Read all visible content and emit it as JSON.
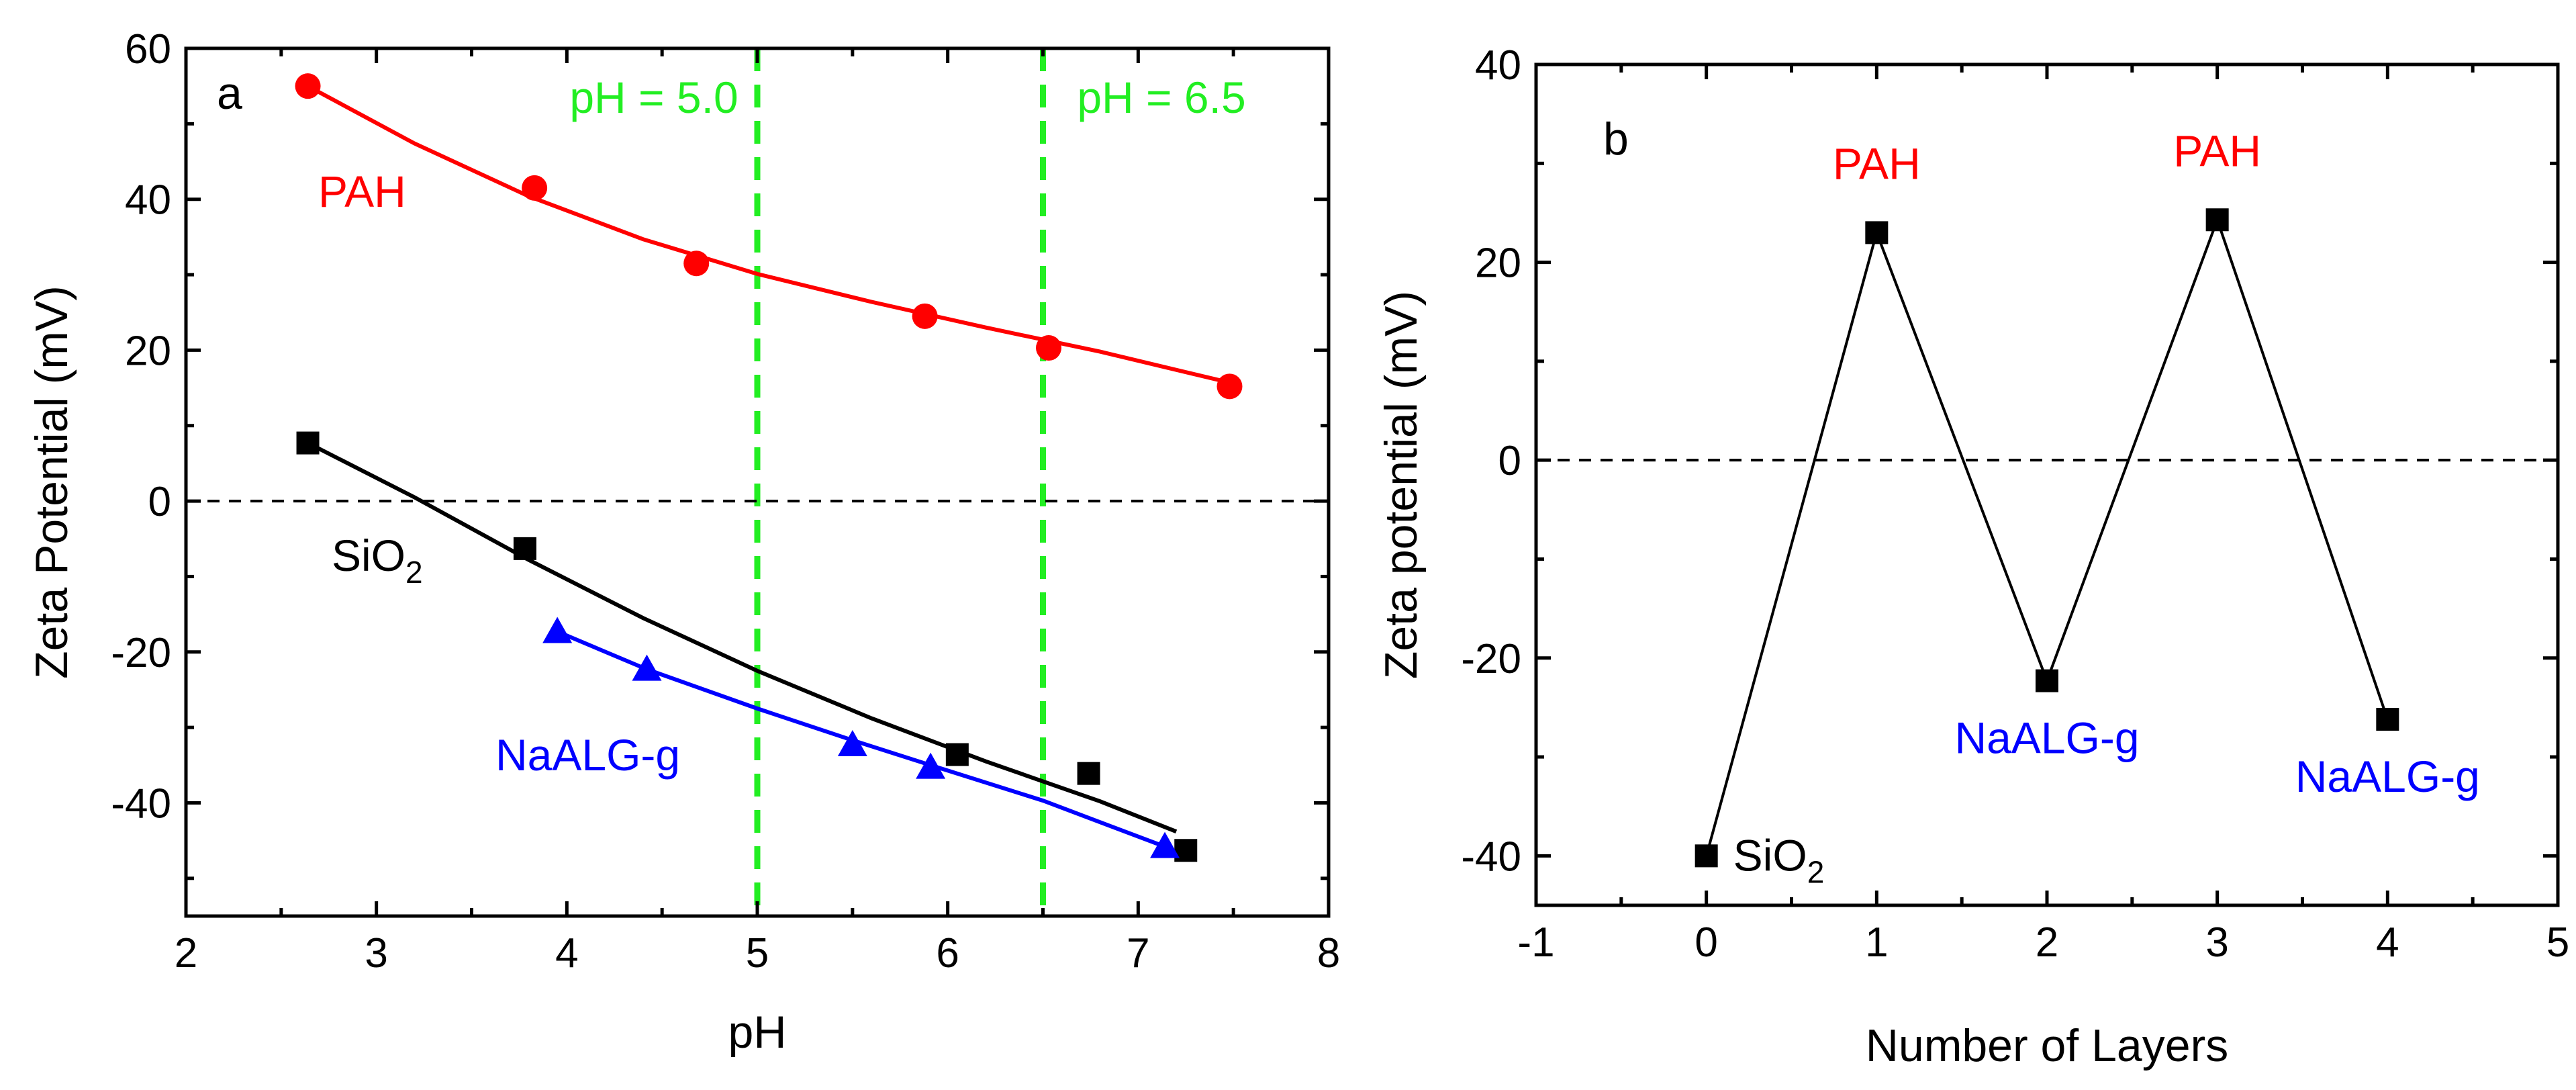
{
  "chart_data": [
    {
      "panel": "a",
      "type": "scatter",
      "xlabel": "pH",
      "ylabel": "Zeta Potential (mV)",
      "xlim": [
        2,
        8
      ],
      "ylim": [
        -55,
        60
      ],
      "xticks": [
        2,
        3,
        4,
        5,
        6,
        7,
        8
      ],
      "yticks": [
        -40,
        -20,
        0,
        20,
        40,
        60
      ],
      "series": [
        {
          "name": "PAH",
          "label": "PAH",
          "color": "#ff0000",
          "marker": "circle",
          "x": [
            2.64,
            3.83,
            4.68,
            5.88,
            6.53,
            7.48
          ],
          "y": [
            55,
            41.5,
            31.5,
            24.5,
            20.3,
            15.2
          ],
          "fit_x": [
            2.64,
            3.2,
            3.8,
            4.4,
            5.0,
            5.6,
            6.2,
            6.8,
            7.48
          ],
          "fit_y": [
            55.0,
            47.4,
            40.4,
            34.7,
            30.1,
            26.4,
            23.0,
            19.8,
            15.7
          ]
        },
        {
          "name": "SiO2",
          "label_main": "SiO",
          "label_sub": "2",
          "color": "#000000",
          "marker": "square",
          "x": [
            2.64,
            3.78,
            6.05,
            6.74,
            7.25
          ],
          "y": [
            7.7,
            -6.3,
            -33.6,
            -36.1,
            -46.3
          ],
          "fit_x": [
            2.64,
            3.2,
            3.8,
            4.4,
            5.0,
            5.6,
            6.2,
            6.8,
            7.2
          ],
          "fit_y": [
            7.7,
            0.5,
            -7.8,
            -15.5,
            -22.5,
            -28.8,
            -34.5,
            -39.8,
            -43.8
          ]
        },
        {
          "name": "NaALG-g",
          "label": "NaALG-g",
          "color": "#0000ff",
          "marker": "triangle",
          "x": [
            3.95,
            4.42,
            5.5,
            5.91,
            7.14
          ],
          "y": [
            -17.3,
            -22.3,
            -32.3,
            -35.3,
            -45.8
          ],
          "fit_x": [
            3.95,
            4.42,
            5.0,
            5.5,
            5.91,
            6.5,
            7.14
          ],
          "fit_y": [
            -17.3,
            -22.3,
            -27.5,
            -31.7,
            -35.0,
            -39.7,
            -45.8
          ]
        }
      ],
      "reference_lines": [
        {
          "orientation": "vertical",
          "value": 5.0,
          "label": "pH = 5.0",
          "color": "#22ee22"
        },
        {
          "orientation": "vertical",
          "value": 6.5,
          "label": "pH = 6.5",
          "color": "#22ee22"
        },
        {
          "orientation": "horizontal",
          "value": 0,
          "color": "#000000"
        }
      ]
    },
    {
      "panel": "b",
      "type": "line",
      "xlabel": "Number of Layers",
      "ylabel": "Zeta potential (mV)",
      "xlim": [
        -1,
        5
      ],
      "ylim": [
        -45,
        40
      ],
      "xticks": [
        -1,
        0,
        1,
        2,
        3,
        4,
        5
      ],
      "yticks": [
        -40,
        -20,
        0,
        20,
        40
      ],
      "series": [
        {
          "name": "Zeta potential",
          "color": "#000000",
          "marker": "square",
          "x": [
            0,
            1,
            2,
            3,
            4
          ],
          "y": [
            -40,
            23,
            -22.3,
            24.3,
            -26.2
          ]
        }
      ],
      "point_labels": [
        {
          "x": 0,
          "text_main": "SiO",
          "text_sub": "2",
          "color": "#000000"
        },
        {
          "x": 1,
          "text": "PAH",
          "color": "#ff0000"
        },
        {
          "x": 2,
          "text": "NaALG-g",
          "color": "#0000ff"
        },
        {
          "x": 3,
          "text": "PAH",
          "color": "#ff0000"
        },
        {
          "x": 4,
          "text": "NaALG-g",
          "color": "#0000ff"
        }
      ],
      "reference_lines": [
        {
          "orientation": "horizontal",
          "value": 0,
          "color": "#000000"
        }
      ]
    }
  ]
}
